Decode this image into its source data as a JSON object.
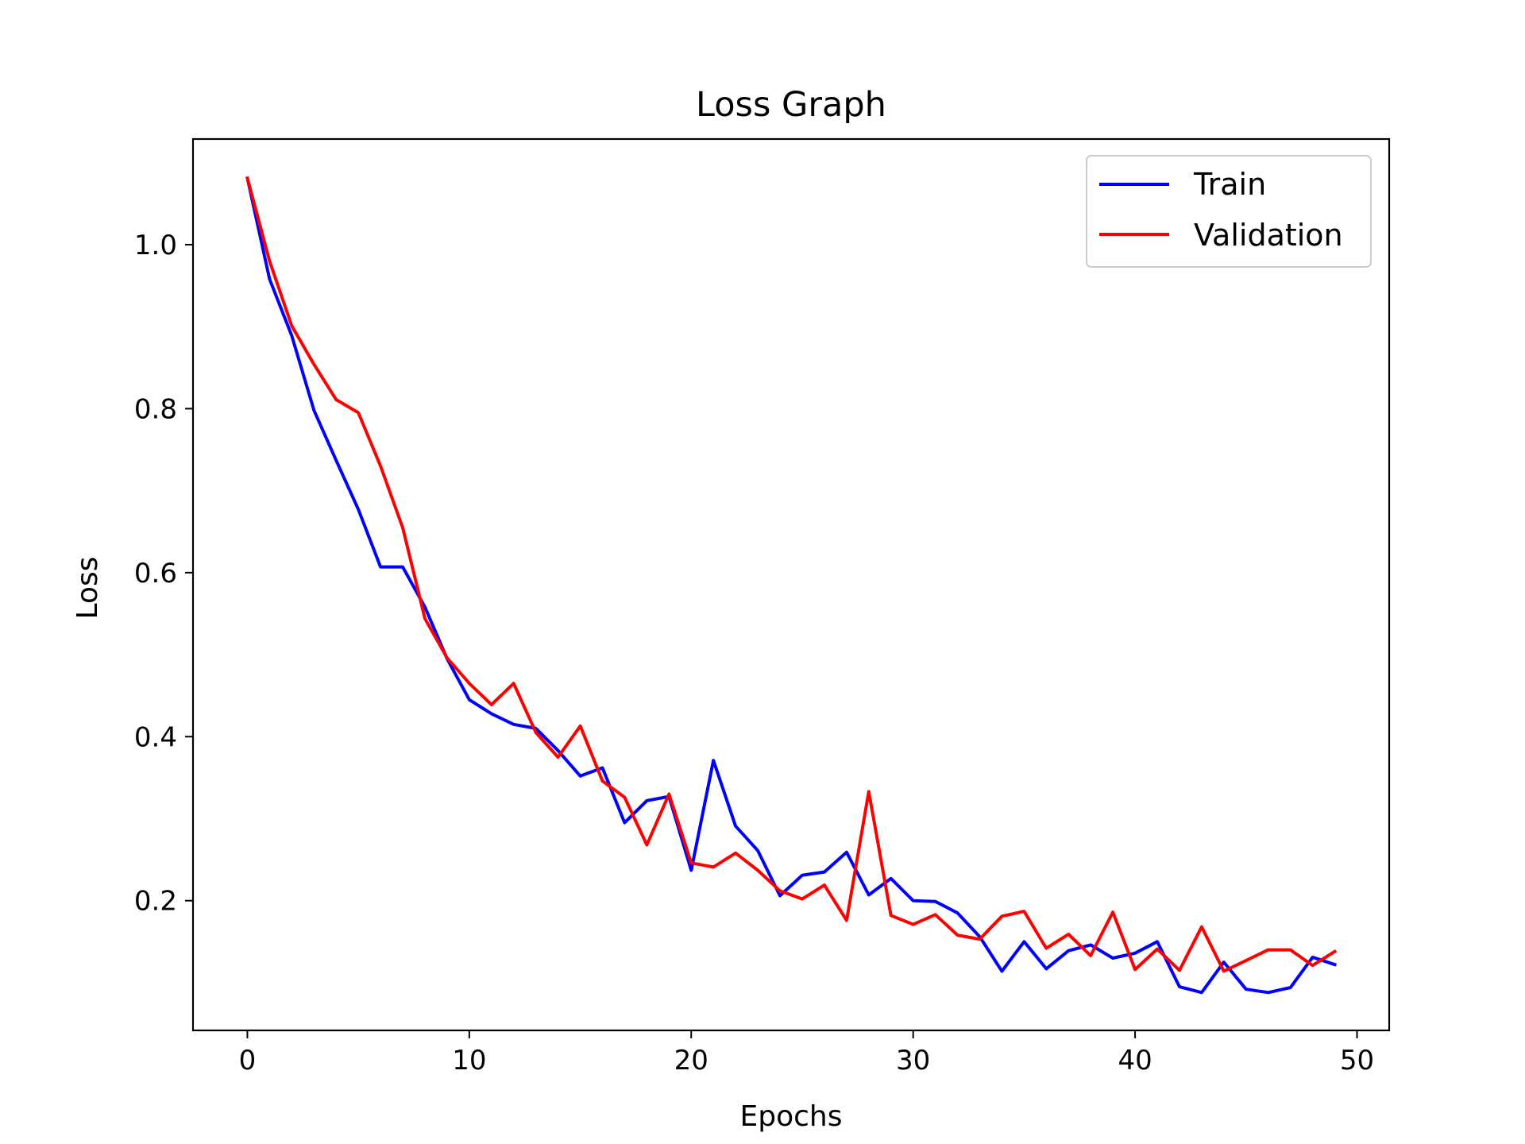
{
  "chart_data": {
    "type": "line",
    "title": "Loss Graph",
    "xlabel": "Epochs",
    "ylabel": "Loss",
    "xlim": [
      -2.45,
      51.45
    ],
    "ylim": [
      0.0418,
      1.1288
    ],
    "xticks": [
      0,
      10,
      20,
      30,
      40,
      50
    ],
    "xtick_labels": [
      "0",
      "10",
      "20",
      "30",
      "40",
      "50"
    ],
    "yticks": [
      0.2,
      0.4,
      0.6,
      0.8,
      1.0
    ],
    "ytick_labels": [
      "0.2",
      "0.4",
      "0.6",
      "0.8",
      "1.0"
    ],
    "grid": false,
    "legend": "top-right",
    "x": [
      0,
      1,
      2,
      3,
      4,
      5,
      6,
      7,
      8,
      9,
      10,
      11,
      12,
      13,
      14,
      15,
      16,
      17,
      18,
      19,
      20,
      21,
      22,
      23,
      24,
      25,
      26,
      27,
      28,
      29,
      30,
      31,
      32,
      33,
      34,
      35,
      36,
      37,
      38,
      39,
      40,
      41,
      42,
      43,
      44,
      45,
      46,
      47,
      48,
      49
    ],
    "series": [
      {
        "name": "Train",
        "color": "#0000ff",
        "values": [
          1.081,
          0.958,
          0.889,
          0.798,
          0.737,
          0.677,
          0.607,
          0.607,
          0.558,
          0.495,
          0.445,
          0.428,
          0.415,
          0.41,
          0.383,
          0.352,
          0.362,
          0.295,
          0.322,
          0.327,
          0.237,
          0.371,
          0.291,
          0.261,
          0.206,
          0.231,
          0.235,
          0.259,
          0.207,
          0.227,
          0.2,
          0.199,
          0.185,
          0.156,
          0.114,
          0.15,
          0.117,
          0.139,
          0.146,
          0.13,
          0.136,
          0.15,
          0.095,
          0.088,
          0.125,
          0.092,
          0.088,
          0.094,
          0.131,
          0.122
        ]
      },
      {
        "name": "Validation",
        "color": "#ff0000",
        "values": [
          1.081,
          0.98,
          0.901,
          0.854,
          0.811,
          0.795,
          0.73,
          0.655,
          0.544,
          0.496,
          0.465,
          0.439,
          0.465,
          0.405,
          0.375,
          0.413,
          0.346,
          0.326,
          0.268,
          0.33,
          0.246,
          0.241,
          0.258,
          0.237,
          0.212,
          0.202,
          0.219,
          0.176,
          0.333,
          0.182,
          0.171,
          0.183,
          0.158,
          0.153,
          0.181,
          0.187,
          0.142,
          0.159,
          0.133,
          0.186,
          0.116,
          0.141,
          0.115,
          0.168,
          0.114,
          0.127,
          0.14,
          0.14,
          0.121,
          0.138
        ]
      }
    ]
  }
}
